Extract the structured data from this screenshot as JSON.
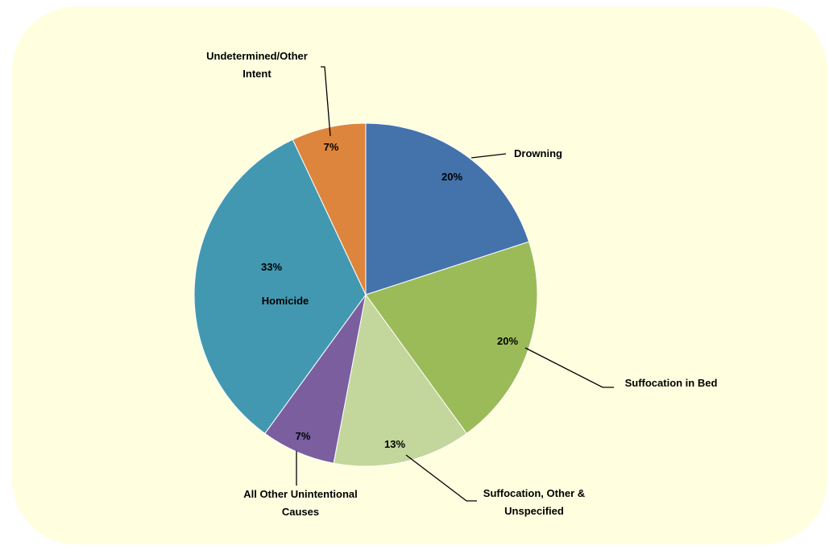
{
  "chart_data": {
    "type": "pie",
    "title": "",
    "slices": [
      {
        "label": "Drowning",
        "value": 20,
        "display": "20%",
        "color": "#4472ab"
      },
      {
        "label": "Suffocation in Bed",
        "value": 20,
        "display": "20%",
        "color": "#9bbb59"
      },
      {
        "label": "Suffocation, Other & Unspecified",
        "value": 13,
        "display": "13%",
        "color": "#c3d69b"
      },
      {
        "label": "All Other Unintentional Causes",
        "value": 7,
        "display": "7%",
        "color": "#7a5e9e"
      },
      {
        "label": "Homicide",
        "value": 33,
        "display": "33%",
        "color": "#4398b1"
      },
      {
        "label": "Undetermined/Other Intent",
        "value": 7,
        "display": "7%",
        "color": "#dd853c"
      }
    ],
    "legend": "none"
  }
}
